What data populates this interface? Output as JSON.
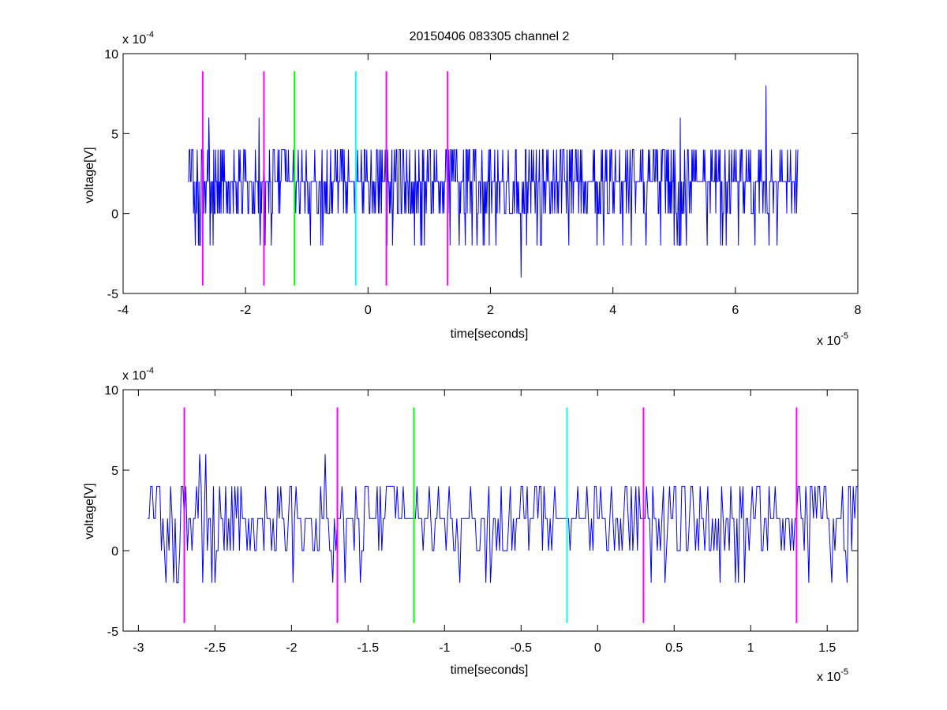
{
  "figure": {
    "title": "20150406 083305 channel 2",
    "colors": {
      "signal": "#0000ff",
      "event_magenta": "#ff00ff",
      "event_green": "#00ff00",
      "event_cyan": "#00ffff",
      "axes": "#000000",
      "background": "#ffffff"
    }
  },
  "chart_data": [
    {
      "type": "line",
      "title": "20150406 083305 channel 2",
      "xlabel": "time[seconds]",
      "ylabel": "voltage[V]",
      "x_exponent_label": "x 10",
      "x_exponent": "-5",
      "y_exponent_label": "x 10",
      "y_exponent": "-4",
      "xlim": [
        -4,
        8
      ],
      "ylim": [
        -5,
        10
      ],
      "xticks": [
        -4,
        -2,
        0,
        2,
        4,
        6,
        8
      ],
      "yticks": [
        -5,
        0,
        5,
        10
      ],
      "xtick_labels": [
        "-4",
        "-2",
        "0",
        "2",
        "4",
        "6",
        "8"
      ],
      "ytick_labels": [
        "-5",
        "0",
        "5",
        "10"
      ],
      "grid": false,
      "series": [
        {
          "color": "#0000ff",
          "x_range": [
            -2.94,
            7.02
          ],
          "baseline": 2,
          "levels": [
            -4,
            -2,
            0,
            2,
            4,
            6,
            8
          ],
          "notable_points": [
            [
              -2.6,
              6
            ],
            [
              -1.78,
              6
            ],
            [
              2.5,
              -4
            ],
            [
              5.1,
              6
            ],
            [
              6.5,
              8
            ],
            [
              6.55,
              -2
            ]
          ]
        }
      ],
      "event_lines": [
        {
          "x": -2.7,
          "color": "#ff00ff",
          "ymin": -4.5,
          "ymax": 8.9
        },
        {
          "x": -1.7,
          "color": "#ff00ff",
          "ymin": -4.5,
          "ymax": 8.9
        },
        {
          "x": -1.2,
          "color": "#00ff00",
          "ymin": -4.5,
          "ymax": 8.9
        },
        {
          "x": -0.2,
          "color": "#00ffff",
          "ymin": -4.5,
          "ymax": 8.9
        },
        {
          "x": 0.3,
          "color": "#ff00ff",
          "ymin": -4.5,
          "ymax": 8.9
        },
        {
          "x": 1.3,
          "color": "#ff00ff",
          "ymin": -4.5,
          "ymax": 8.9
        }
      ]
    },
    {
      "type": "line",
      "xlabel": "time[seconds]",
      "ylabel": "voltage[V]",
      "x_exponent_label": "x 10",
      "x_exponent": "-5",
      "y_exponent_label": "x 10",
      "y_exponent": "-4",
      "xlim": [
        -3.1,
        1.7
      ],
      "ylim": [
        -5,
        10
      ],
      "xticks": [
        -3,
        -2.5,
        -2,
        -1.5,
        -1,
        -0.5,
        0,
        0.5,
        1,
        1.5
      ],
      "yticks": [
        -5,
        0,
        5,
        10
      ],
      "xtick_labels": [
        "-3",
        "-2.5",
        "-2",
        "-1.5",
        "-1",
        "-0.5",
        "0",
        "0.5",
        "1",
        "1.5"
      ],
      "ytick_labels": [
        "-5",
        "0",
        "5",
        "10"
      ],
      "grid": false,
      "series": [
        {
          "color": "#0000ff",
          "x_range": [
            -2.94,
            1.7
          ],
          "baseline": 2,
          "levels": [
            -2,
            0,
            2,
            4,
            6
          ],
          "notable_points": [
            [
              -2.6,
              6
            ],
            [
              -2.56,
              6
            ],
            [
              -1.78,
              6
            ],
            [
              -2.5,
              -2
            ],
            [
              -1.99,
              -2
            ],
            [
              -1.2,
              2
            ]
          ]
        }
      ],
      "event_lines": [
        {
          "x": -2.7,
          "color": "#ff00ff",
          "ymin": -4.5,
          "ymax": 8.9
        },
        {
          "x": -1.7,
          "color": "#ff00ff",
          "ymin": -4.5,
          "ymax": 8.9
        },
        {
          "x": -1.2,
          "color": "#00ff00",
          "ymin": -4.5,
          "ymax": 8.9
        },
        {
          "x": -0.2,
          "color": "#00ffff",
          "ymin": -4.5,
          "ymax": 8.9
        },
        {
          "x": 0.3,
          "color": "#ff00ff",
          "ymin": -4.5,
          "ymax": 8.9
        },
        {
          "x": 1.3,
          "color": "#ff00ff",
          "ymin": -4.5,
          "ymax": 8.9
        }
      ]
    }
  ]
}
